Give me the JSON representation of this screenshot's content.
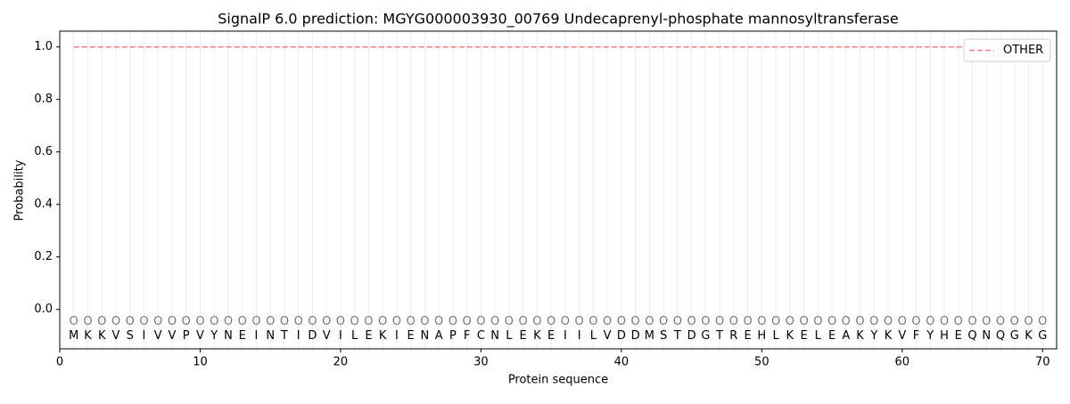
{
  "chart_data": {
    "type": "line",
    "title": "SignalP 6.0 prediction: MGYG000003930_00769 Undecaprenyl-phosphate mannosyltransferase",
    "x_label": "Protein sequence",
    "y_label": "Probability",
    "x": [
      1,
      2,
      3,
      4,
      5,
      6,
      7,
      8,
      9,
      10,
      11,
      12,
      13,
      14,
      15,
      16,
      17,
      18,
      19,
      20,
      21,
      22,
      23,
      24,
      25,
      26,
      27,
      28,
      29,
      30,
      31,
      32,
      33,
      34,
      35,
      36,
      37,
      38,
      39,
      40,
      41,
      42,
      43,
      44,
      45,
      46,
      47,
      48,
      49,
      50,
      51,
      52,
      53,
      54,
      55,
      56,
      57,
      58,
      59,
      60,
      61,
      62,
      63,
      64,
      65,
      66,
      67,
      68,
      69,
      70
    ],
    "residues": [
      "M",
      "K",
      "K",
      "V",
      "S",
      "I",
      "V",
      "V",
      "P",
      "V",
      "Y",
      "N",
      "E",
      "I",
      "N",
      "T",
      "I",
      "D",
      "V",
      "I",
      "L",
      "E",
      "K",
      "I",
      "E",
      "N",
      "A",
      "P",
      "F",
      "C",
      "N",
      "L",
      "E",
      "K",
      "E",
      "I",
      "I",
      "L",
      "V",
      "D",
      "D",
      "M",
      "S",
      "T",
      "D",
      "G",
      "T",
      "R",
      "E",
      "H",
      "L",
      "K",
      "E",
      "L",
      "E",
      "A",
      "K",
      "Y",
      "K",
      "V",
      "F",
      "Y",
      "H",
      "E",
      "Q",
      "N",
      "Q",
      "G",
      "K",
      "G"
    ],
    "predictions": [
      "O",
      "O",
      "O",
      "O",
      "O",
      "O",
      "O",
      "O",
      "O",
      "O",
      "O",
      "O",
      "O",
      "O",
      "O",
      "O",
      "O",
      "O",
      "O",
      "O",
      "O",
      "O",
      "O",
      "O",
      "O",
      "O",
      "O",
      "O",
      "O",
      "O",
      "O",
      "O",
      "O",
      "O",
      "O",
      "O",
      "O",
      "O",
      "O",
      "O",
      "O",
      "O",
      "O",
      "O",
      "O",
      "O",
      "O",
      "O",
      "O",
      "O",
      "O",
      "O",
      "O",
      "O",
      "O",
      "O",
      "O",
      "O",
      "O",
      "O",
      "O",
      "O",
      "O",
      "O",
      "O",
      "O",
      "O",
      "O",
      "O",
      "O"
    ],
    "series": [
      {
        "name": "OTHER",
        "color": "#f08080",
        "dashed": true,
        "values": [
          1,
          1,
          1,
          1,
          1,
          1,
          1,
          1,
          1,
          1,
          1,
          1,
          1,
          1,
          1,
          1,
          1,
          1,
          1,
          1,
          1,
          1,
          1,
          1,
          1,
          1,
          1,
          1,
          1,
          1,
          1,
          1,
          1,
          1,
          1,
          1,
          1,
          1,
          1,
          1,
          1,
          1,
          1,
          1,
          1,
          1,
          1,
          1,
          1,
          1,
          1,
          1,
          1,
          1,
          1,
          1,
          1,
          1,
          1,
          1,
          1,
          1,
          1,
          1,
          1,
          1,
          1,
          1,
          1,
          1
        ]
      }
    ],
    "xlim": [
      0,
      71
    ],
    "ylim": [
      -0.15,
      1.06
    ],
    "xticks": [
      0,
      10,
      20,
      30,
      40,
      50,
      60,
      70
    ],
    "yticks": [
      {
        "value": 0,
        "label": "0.0"
      },
      0.2,
      0.4,
      0.6,
      0.8,
      {
        "value": 1,
        "label": "1.0"
      }
    ],
    "legend": "upper right"
  }
}
